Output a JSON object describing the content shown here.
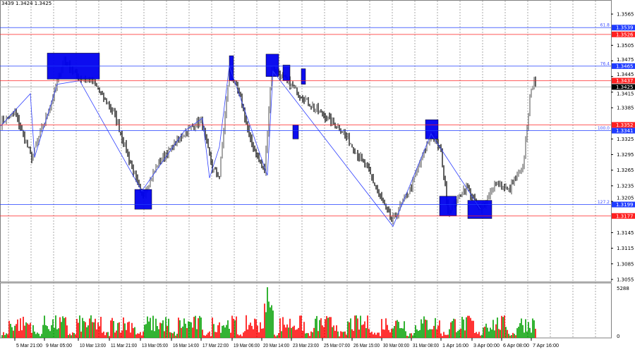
{
  "header": {
    "ohlc_text": "3439 1.3424 1.3425"
  },
  "colors": {
    "support": "#1f3cff",
    "resistance": "#ff2020",
    "zone": "#0000ee",
    "candle_up": "#808080",
    "candle_down": "#202020",
    "vol_up": "#00a000",
    "vol_down": "#ff0000"
  },
  "chart_data": {
    "type": "candlestick",
    "bars_total": 380,
    "ylim": [
      1.3055,
      1.358
    ],
    "y_ticks": [
      "1.3565",
      "1.3505",
      "1.3475",
      "1.3445",
      "1.3415",
      "1.3385",
      "1.3325",
      "1.3295",
      "1.3265",
      "1.3235",
      "1.3205",
      "1.3145",
      "1.3115",
      "1.3085",
      "1.3055"
    ],
    "x_ticks": [
      {
        "bar": 10,
        "label": "5 Mar 21:00"
      },
      {
        "bar": 31,
        "label": "9 Mar 05:00"
      },
      {
        "bar": 55,
        "label": "10 Mar 13:00"
      },
      {
        "bar": 77,
        "label": "11 Mar 21:00"
      },
      {
        "bar": 99,
        "label": "13 Mar 05:00"
      },
      {
        "bar": 121,
        "label": "16 Mar 14:00"
      },
      {
        "bar": 142,
        "label": "17 Mar 22:00"
      },
      {
        "bar": 164,
        "label": "19 Mar 06:00"
      },
      {
        "bar": 185,
        "label": "20 Mar 14:00"
      },
      {
        "bar": 206,
        "label": "23 Mar 23:00"
      },
      {
        "bar": 228,
        "label": "25 Mar 07:00"
      },
      {
        "bar": 249,
        "label": "26 Mar 15:00"
      },
      {
        "bar": 270,
        "label": "30 Mar 00:00"
      },
      {
        "bar": 291,
        "label": "31 Mar 08:00"
      },
      {
        "bar": 312,
        "label": "1 Apr 16:00"
      },
      {
        "bar": 334,
        "label": "3 Apr 00:00"
      },
      {
        "bar": 355,
        "label": "6 Apr 08:00"
      },
      {
        "bar": 376,
        "label": "7 Apr 16:00"
      }
    ],
    "price_path": [
      [
        0,
        1.3355
      ],
      [
        10,
        1.3376
      ],
      [
        22,
        1.3288
      ],
      [
        35,
        1.3389
      ],
      [
        45,
        1.3477
      ],
      [
        55,
        1.3443
      ],
      [
        65,
        1.3436
      ],
      [
        80,
        1.3376
      ],
      [
        100,
        1.3213
      ],
      [
        112,
        1.3281
      ],
      [
        130,
        1.3335
      ],
      [
        142,
        1.3362
      ],
      [
        150,
        1.3267
      ],
      [
        155,
        1.3254
      ],
      [
        162,
        1.3457
      ],
      [
        170,
        1.3403
      ],
      [
        177,
        1.3321
      ],
      [
        187,
        1.3261
      ],
      [
        192,
        1.3464
      ],
      [
        205,
        1.343
      ],
      [
        220,
        1.3389
      ],
      [
        240,
        1.3348
      ],
      [
        260,
        1.3267
      ],
      [
        277,
        1.3166
      ],
      [
        290,
        1.3227
      ],
      [
        305,
        1.3335
      ],
      [
        312,
        1.3301
      ],
      [
        317,
        1.3186
      ],
      [
        330,
        1.3234
      ],
      [
        340,
        1.3186
      ],
      [
        350,
        1.324
      ],
      [
        360,
        1.3227
      ],
      [
        370,
        1.3267
      ],
      [
        375,
        1.3403
      ],
      [
        378,
        1.3443
      ],
      [
        379,
        1.3425
      ]
    ],
    "levels": [
      {
        "price": 1.3539,
        "label": "1.3539",
        "kind": "support",
        "fib": "61.8"
      },
      {
        "price": 1.3526,
        "label": "1.3526",
        "kind": "resistance",
        "fib": ""
      },
      {
        "price": 1.3465,
        "label": "1.3465",
        "kind": "support",
        "fib": "76.4"
      },
      {
        "price": 1.3437,
        "label": "1.3437",
        "kind": "resistance",
        "fib": ""
      },
      {
        "price": 1.3352,
        "label": "1.3352",
        "kind": "resistance",
        "fib": ""
      },
      {
        "price": 1.3341,
        "label": "1.3341",
        "kind": "support",
        "fib": "100.0"
      },
      {
        "price": 1.3199,
        "label": "1.3199",
        "kind": "support",
        "fib": "127.2"
      },
      {
        "price": 1.3177,
        "label": "1.3177",
        "kind": "resistance",
        "fib": ""
      }
    ],
    "current_price": {
      "price": 1.3425,
      "label": "1.3425"
    },
    "zones": [
      {
        "bars": [
          33,
          70
        ],
        "prices": [
          1.344,
          1.349
        ]
      },
      {
        "bars": [
          95,
          107
        ],
        "prices": [
          1.319,
          1.3228
        ]
      },
      {
        "bars": [
          162,
          165
        ],
        "prices": [
          1.3437,
          1.3485
        ]
      },
      {
        "bars": [
          188,
          197
        ],
        "prices": [
          1.3445,
          1.3488
        ]
      },
      {
        "bars": [
          200,
          205
        ],
        "prices": [
          1.3437,
          1.3467
        ]
      },
      {
        "bars": [
          207,
          211
        ],
        "prices": [
          1.3325,
          1.3352
        ]
      },
      {
        "bars": [
          213,
          216
        ],
        "prices": [
          1.343,
          1.346
        ]
      },
      {
        "bars": [
          301,
          310
        ],
        "prices": [
          1.3325,
          1.3362
        ]
      },
      {
        "bars": [
          311,
          323
        ],
        "prices": [
          1.3177,
          1.3215
        ]
      },
      {
        "bars": [
          331,
          348
        ],
        "prices": [
          1.3172,
          1.3207
        ]
      }
    ],
    "zigzag": [
      [
        0,
        1.335
      ],
      [
        21,
        1.3412
      ],
      [
        24,
        1.329
      ],
      [
        40,
        1.343
      ],
      [
        56,
        1.3437
      ],
      [
        100,
        1.3225
      ],
      [
        130,
        1.334
      ],
      [
        143,
        1.3365
      ],
      [
        148,
        1.325
      ],
      [
        155,
        1.331
      ],
      [
        162,
        1.3465
      ],
      [
        189,
        1.3255
      ],
      [
        193,
        1.3455
      ],
      [
        278,
        1.3157
      ],
      [
        305,
        1.3335
      ],
      [
        340,
        1.319
      ]
    ],
    "volume": {
      "max_label": "5288",
      "min_label": "0",
      "max": 5288
    }
  }
}
